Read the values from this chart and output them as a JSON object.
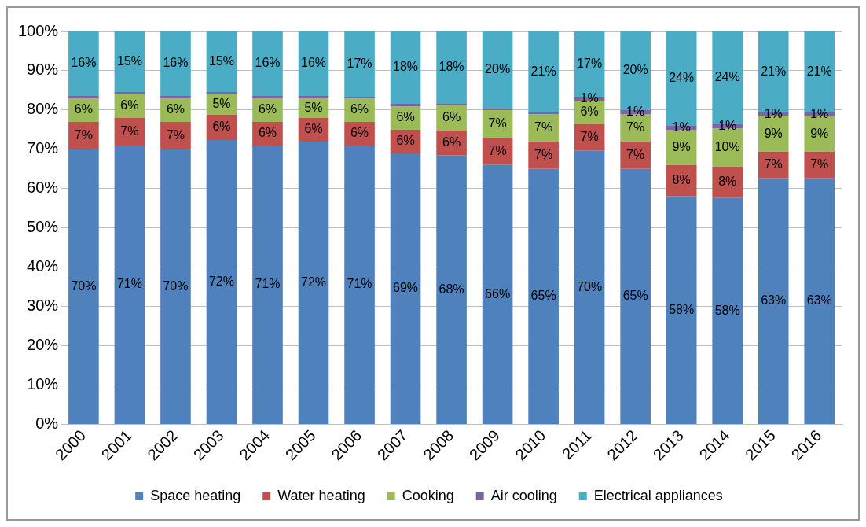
{
  "chart_data": {
    "type": "bar",
    "stacked": true,
    "categories": [
      "2000",
      "2001",
      "2002",
      "2003",
      "2004",
      "2005",
      "2006",
      "2007",
      "2008",
      "2009",
      "2010",
      "2011",
      "2012",
      "2013",
      "2014",
      "2015",
      "2016"
    ],
    "ylim": [
      0,
      100
    ],
    "yticks": [
      {
        "value": 0,
        "label": "0%"
      },
      {
        "value": 10,
        "label": "10%"
      },
      {
        "value": 20,
        "label": "20%"
      },
      {
        "value": 30,
        "label": "30%"
      },
      {
        "value": 40,
        "label": "40%"
      },
      {
        "value": 50,
        "label": "50%"
      },
      {
        "value": 60,
        "label": "60%"
      },
      {
        "value": 70,
        "label": "70%"
      },
      {
        "value": 80,
        "label": "80%"
      },
      {
        "value": 90,
        "label": "90%"
      },
      {
        "value": 100,
        "label": "100%"
      }
    ],
    "grid": "y",
    "legend": "bottom",
    "marker": "square",
    "series": [
      {
        "name": "Space heating",
        "color": "#4f81bd",
        "values": [
          70,
          71,
          70,
          72.4,
          71,
          72,
          71,
          69,
          68.4,
          66,
          65,
          69.6,
          65,
          58,
          57.6,
          62.6,
          62.6
        ],
        "value_labels": [
          "70%",
          "71%",
          "70%",
          "72%",
          "71%",
          "72%",
          "71%",
          "69%",
          "68%",
          "66%",
          "65%",
          "70%",
          "65%",
          "58%",
          "58%",
          "63%",
          "63%"
        ]
      },
      {
        "name": "Water heating",
        "color": "#c0504d",
        "values": [
          7,
          7,
          7,
          6.4,
          6,
          6,
          6,
          6,
          6.4,
          7,
          7,
          6.8,
          7,
          8,
          8,
          6.8,
          6.8
        ],
        "value_labels": [
          "7%",
          "7%",
          "7%",
          "6%",
          "6%",
          "6%",
          "6%",
          "6%",
          "6%",
          "7%",
          "7%",
          "7%",
          "7%",
          "8%",
          "8%",
          "7%",
          "7%"
        ]
      },
      {
        "name": "Cooking",
        "color": "#9bbb59",
        "values": [
          6,
          6,
          6,
          5.4,
          6,
          5,
          6,
          6,
          6.4,
          7,
          7,
          6,
          7,
          9,
          9.8,
          9,
          9
        ],
        "value_labels": [
          "6%",
          "6%",
          "6%",
          "5%",
          "6%",
          "5%",
          "6%",
          "6%",
          "6%",
          "7%",
          "7%",
          "6%",
          "7%",
          "9%",
          "10%",
          "9%",
          "9%"
        ]
      },
      {
        "name": "Air cooling",
        "color": "#8064a2",
        "values": [
          0.6,
          0.6,
          0.6,
          0.4,
          0.6,
          0.6,
          0.4,
          0.6,
          0.4,
          0.4,
          0.4,
          1,
          1,
          1,
          1,
          1,
          1
        ],
        "value_labels": [
          null,
          null,
          null,
          null,
          null,
          null,
          null,
          null,
          null,
          null,
          null,
          "1%",
          "1%",
          "1%",
          "1%",
          "1%",
          "1%"
        ]
      },
      {
        "name": "Electrical appliances",
        "color": "#4bacc6",
        "values": [
          16.4,
          15.4,
          16.4,
          15.4,
          16.4,
          16.4,
          16.6,
          18.4,
          18.4,
          19.6,
          20.6,
          16.6,
          20,
          24,
          23.6,
          20.6,
          20.6
        ],
        "value_labels": [
          "16%",
          "15%",
          "16%",
          "15%",
          "16%",
          "16%",
          "17%",
          "18%",
          "18%",
          "20%",
          "21%",
          "17%",
          "20%",
          "24%",
          "24%",
          "21%",
          "21%"
        ]
      }
    ]
  }
}
